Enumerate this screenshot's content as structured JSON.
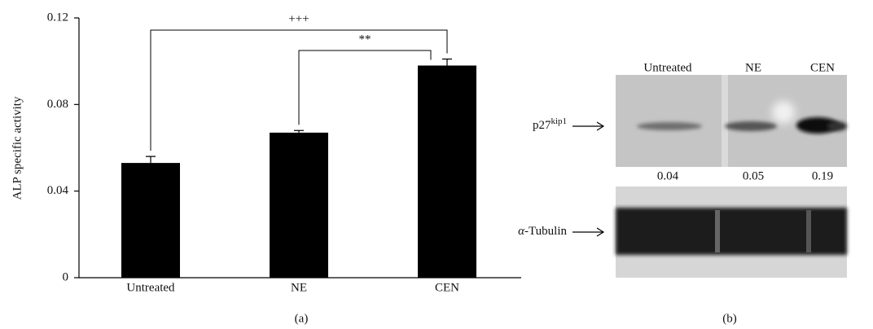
{
  "chart_data": {
    "type": "bar",
    "ylabel": "ALP specific activity",
    "categories": [
      "Untreated",
      "NE",
      "CEN"
    ],
    "values": [
      0.053,
      0.067,
      0.098
    ],
    "errors": [
      0.003,
      0.001,
      0.003
    ],
    "color": "#000000",
    "ylim": [
      0,
      0.12
    ],
    "yticks": [
      0,
      0.04,
      0.08,
      0.12
    ],
    "comparisons": [
      {
        "label": "+++",
        "between": [
          "Untreated",
          "CEN"
        ]
      },
      {
        "label": "**",
        "between": [
          "NE",
          "CEN"
        ]
      }
    ],
    "panel_label": "(a)"
  },
  "blot": {
    "lanes": [
      "Untreated",
      "NE",
      "CEN"
    ],
    "bands": [
      {
        "label": "p27",
        "superscript": "kip1"
      },
      {
        "symbol": "α",
        "label": "-Tubulin"
      }
    ],
    "quantification": [
      0.04,
      0.05,
      0.19
    ],
    "panel_label": "(b)"
  }
}
